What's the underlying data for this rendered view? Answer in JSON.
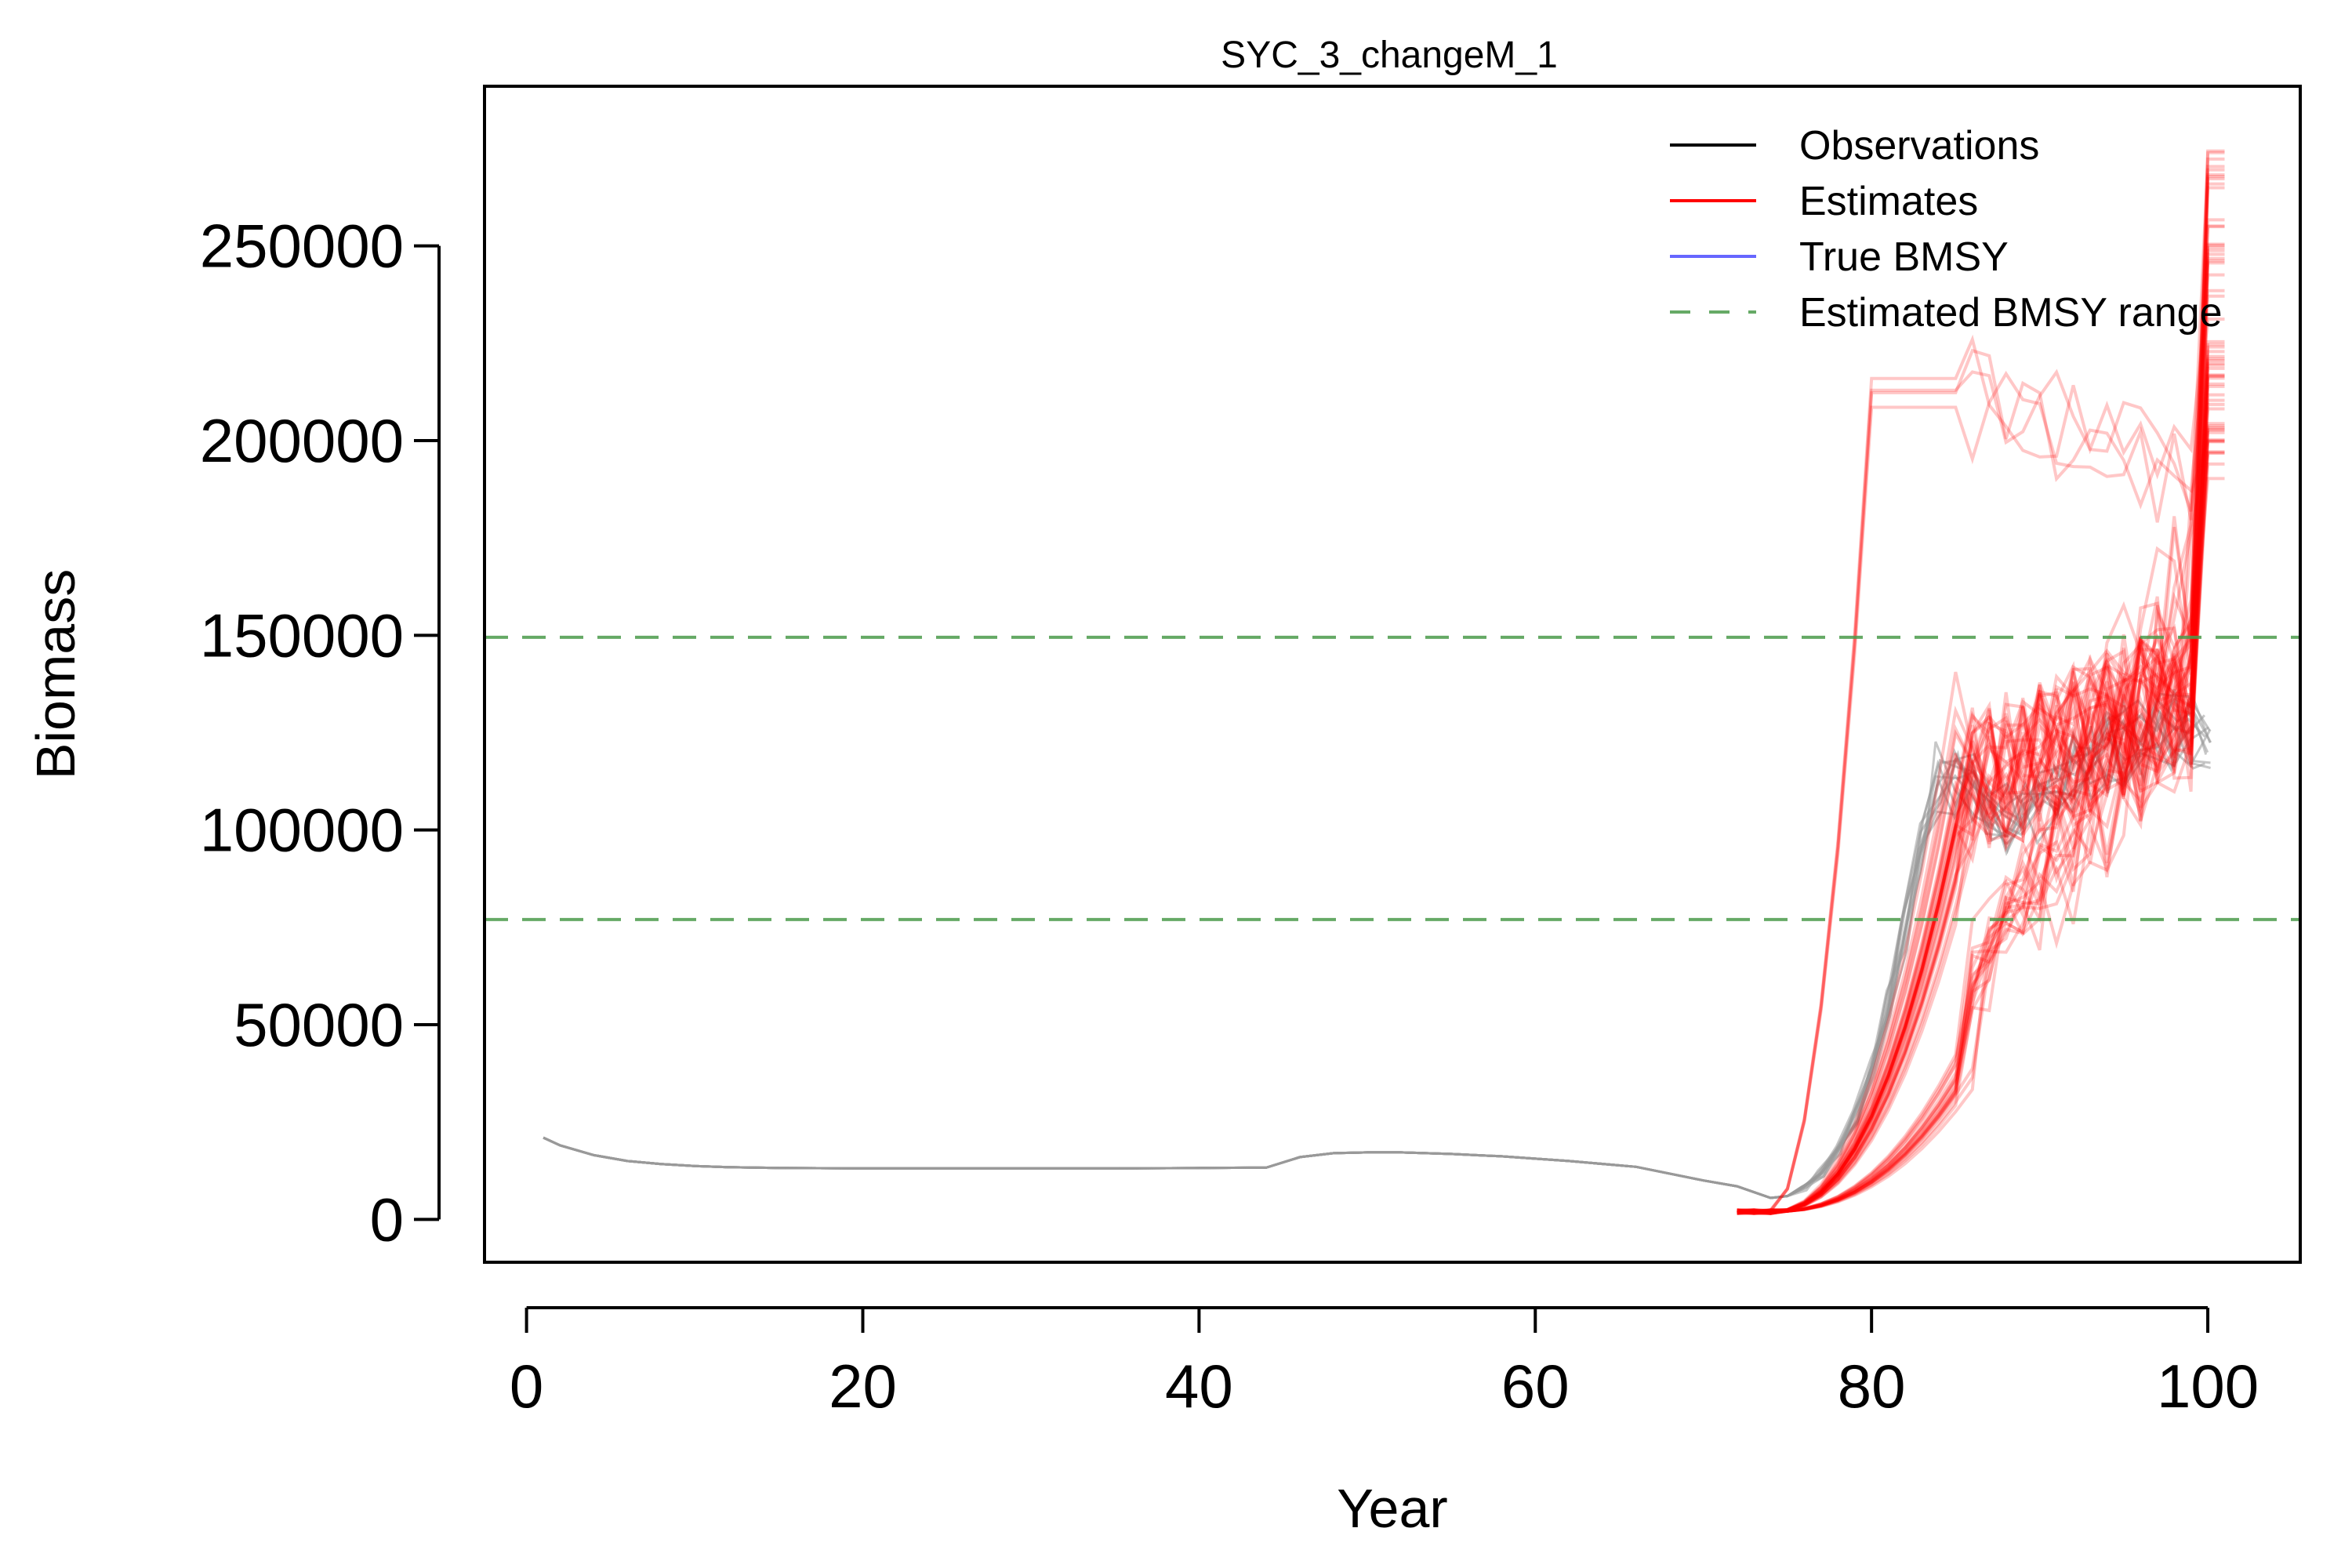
{
  "chart_data": {
    "type": "line",
    "title": "SYC_3_changeM_1",
    "xlabel": "Year",
    "ylabel": "Biomass",
    "xlim": [
      -2.5,
      105.5
    ],
    "ylim": [
      -11000,
      291000
    ],
    "x_ticks": [
      0,
      20,
      40,
      60,
      80,
      100
    ],
    "y_ticks": [
      0,
      50000,
      100000,
      150000,
      200000,
      250000
    ],
    "x_tick_labels": [
      "0",
      "20",
      "40",
      "60",
      "80",
      "100"
    ],
    "y_tick_labels": [
      "0",
      "50000",
      "100000",
      "150000",
      "200000",
      "250000"
    ],
    "grid": false,
    "legend": {
      "position": "top-right",
      "entries": [
        {
          "label": "Observations",
          "color": "#000000",
          "style": "solid"
        },
        {
          "label": "Estimates",
          "color": "#ff0000",
          "style": "solid"
        },
        {
          "label": "True BMSY",
          "color": "#6666ff",
          "style": "solid"
        },
        {
          "label": "Estimated BMSY range",
          "color": "#66aa66",
          "style": "dashed"
        }
      ]
    },
    "bmsy_range": [
      77000,
      149500
    ],
    "observations": {
      "color": "#999999",
      "x": [
        1,
        2,
        4,
        6,
        8,
        10,
        12,
        15,
        20,
        25,
        30,
        35,
        40,
        44,
        46,
        48,
        50,
        52,
        55,
        58,
        62,
        66,
        70,
        72,
        74,
        75,
        76,
        77,
        78,
        79,
        80,
        81,
        82,
        83,
        84,
        85,
        86,
        87,
        88,
        89,
        90,
        91,
        92,
        93,
        94,
        95,
        96,
        97,
        98,
        99,
        100
      ],
      "y": [
        21000,
        19000,
        16500,
        15000,
        14200,
        13700,
        13400,
        13200,
        13100,
        13100,
        13100,
        13100,
        13200,
        13300,
        16000,
        17000,
        17200,
        17200,
        16800,
        16200,
        15000,
        13500,
        10000,
        8500,
        5500,
        6000,
        8000,
        12000,
        18000,
        26000,
        38000,
        55000,
        75000,
        98000,
        113000,
        112000,
        110000,
        105000,
        103000,
        104000,
        106000,
        110000,
        115000,
        118000,
        120000,
        122000,
        123000,
        124000,
        125000,
        124000,
        122000
      ]
    },
    "estimates": {
      "color": "#ff0000",
      "x_start": 72,
      "x_end": 101,
      "series_count": 60,
      "final_value_range": [
        190000,
        279000
      ],
      "peak_near_year_85": [
        95000,
        150000
      ],
      "low_group_year_88": [
        45000,
        65000
      ],
      "outlier_max": 224000
    }
  }
}
